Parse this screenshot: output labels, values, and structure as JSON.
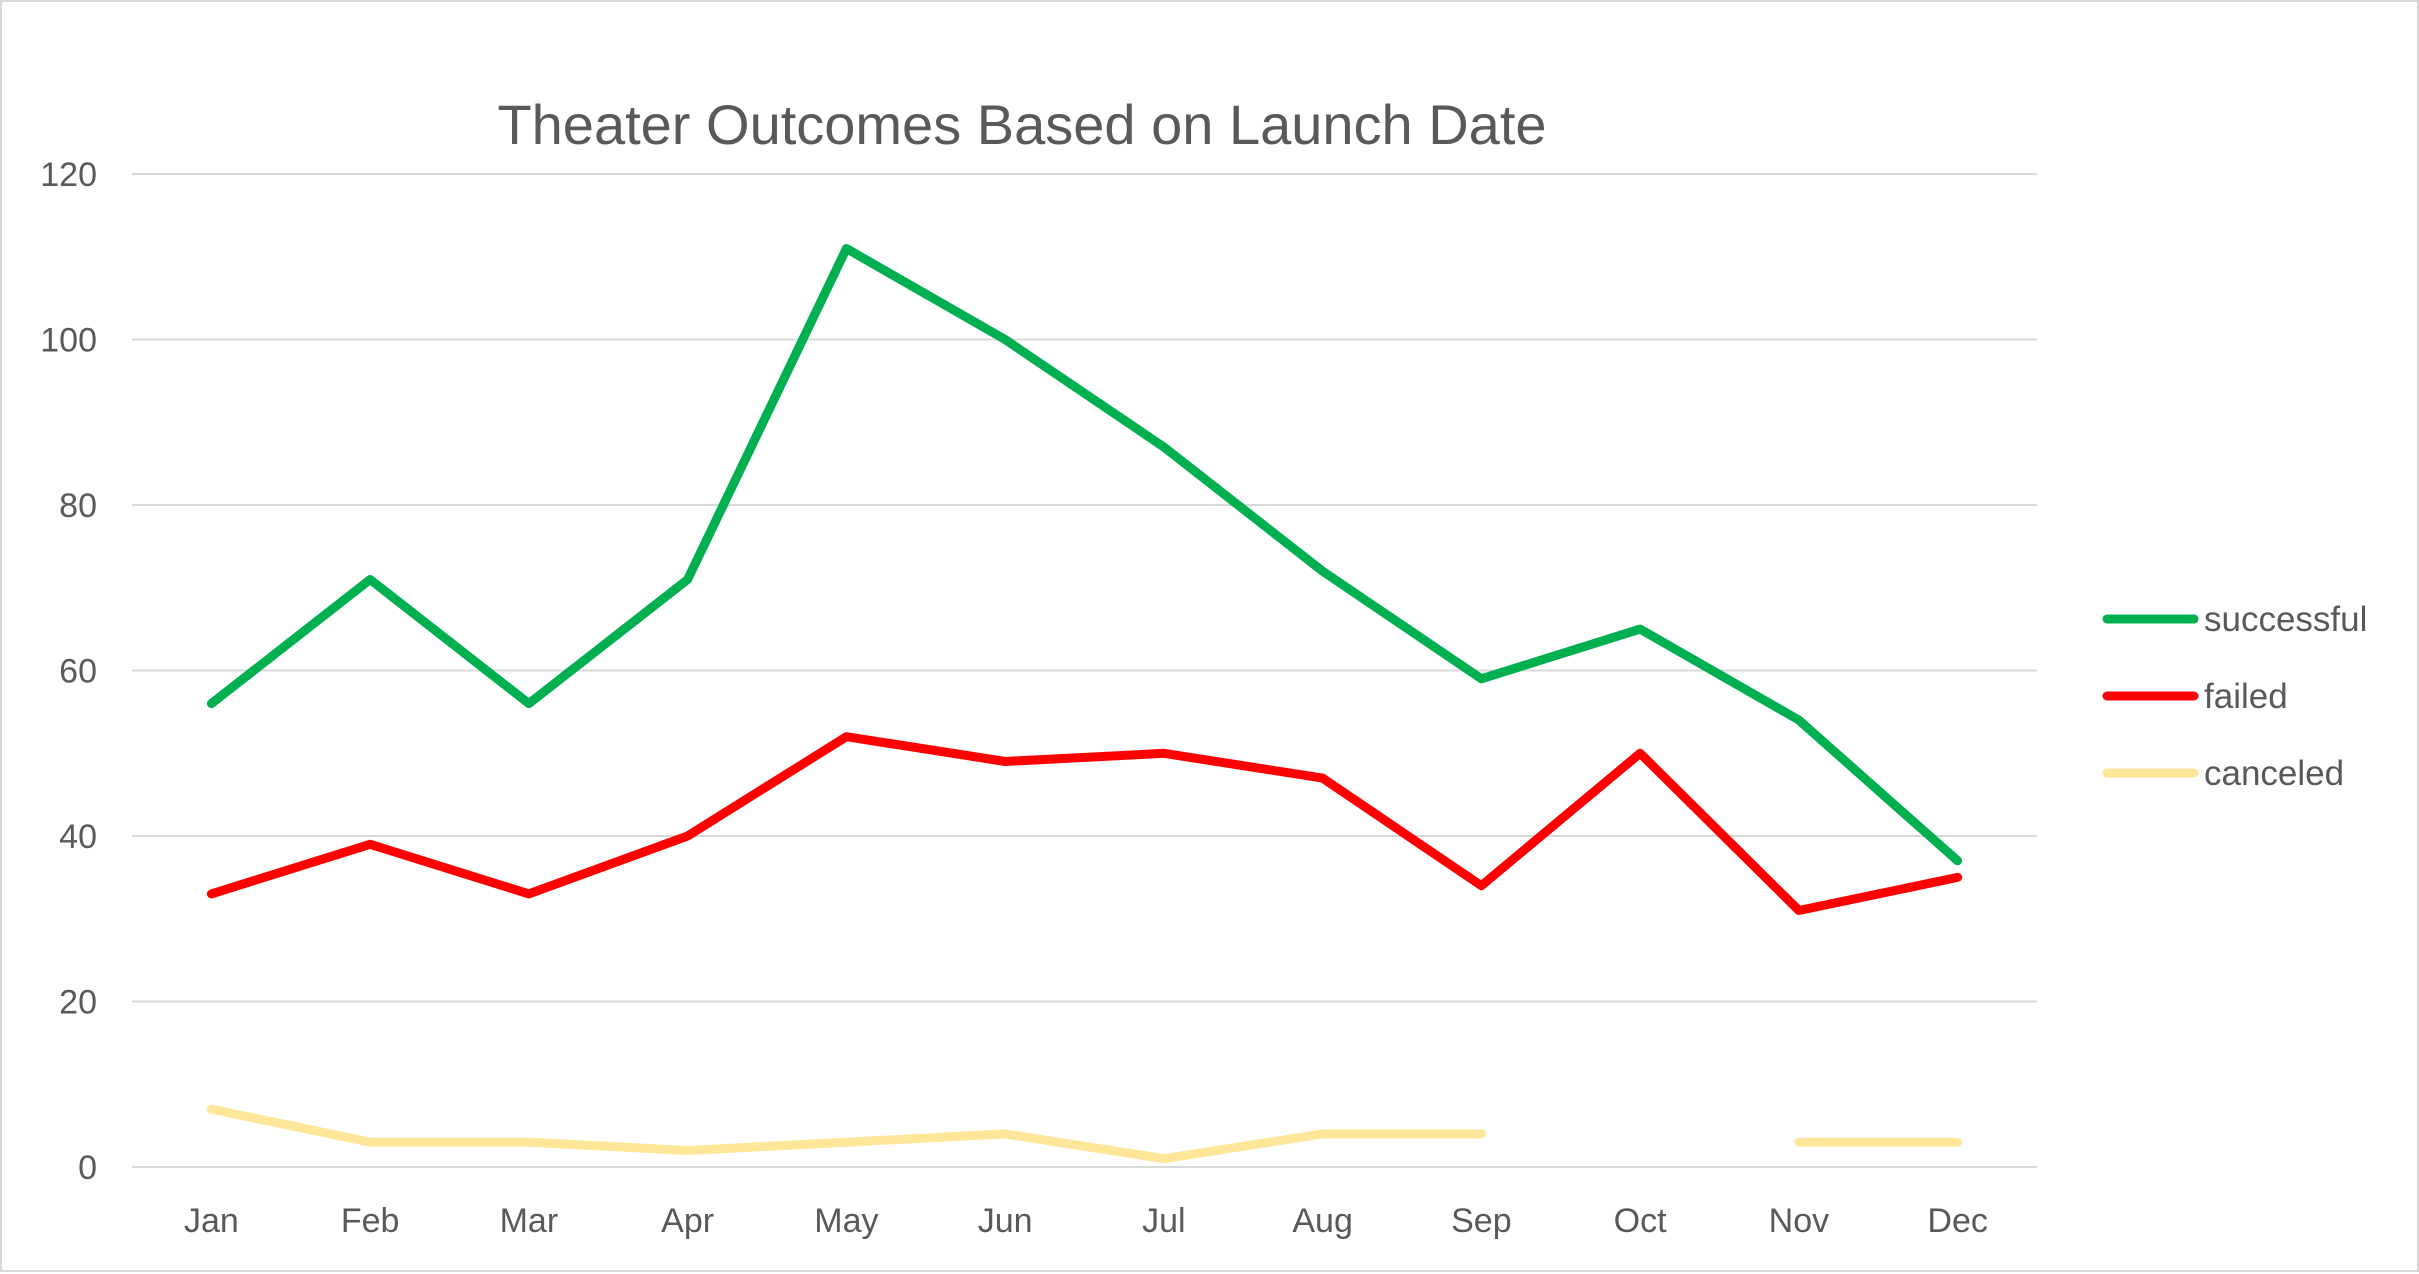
{
  "chart_data": {
    "type": "line",
    "title": "Theater Outcomes Based on Launch Date",
    "xlabel": "",
    "ylabel": "",
    "categories": [
      "Jan",
      "Feb",
      "Mar",
      "Apr",
      "May",
      "Jun",
      "Jul",
      "Aug",
      "Sep",
      "Oct",
      "Nov",
      "Dec"
    ],
    "ylim": [
      0,
      120
    ],
    "yticks": [
      0,
      20,
      40,
      60,
      80,
      100,
      120
    ],
    "grid": true,
    "legend_position": "right",
    "series": [
      {
        "name": "successful",
        "color": "#00B050",
        "values": [
          56,
          71,
          56,
          71,
          111,
          100,
          87,
          72,
          59,
          65,
          54,
          37
        ]
      },
      {
        "name": "failed",
        "color": "#FF0000",
        "values": [
          33,
          39,
          33,
          40,
          52,
          49,
          50,
          47,
          34,
          50,
          31,
          35
        ]
      },
      {
        "name": "canceled",
        "color": "#FFE699",
        "values": [
          7,
          3,
          3,
          2,
          3,
          4,
          1,
          4,
          4,
          null,
          3,
          3
        ]
      }
    ]
  }
}
